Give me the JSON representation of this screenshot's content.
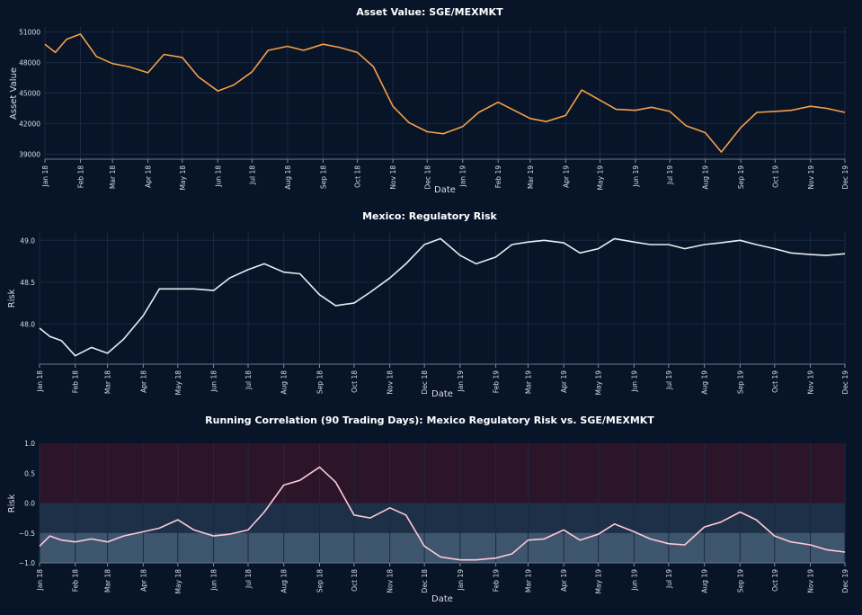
{
  "chart_data": [
    {
      "type": "line",
      "title": "Asset Value: SGE/MEXMKT",
      "xlabel": "Date",
      "ylabel": "Asset Value",
      "ylim": [
        38500,
        51500
      ],
      "yticks": [
        39000,
        42000,
        45000,
        48000,
        51000
      ],
      "xlim": [
        "2018-01-01",
        "2019-12-01"
      ],
      "x_tick_labels": [
        "Jan 18",
        "Feb 18",
        "Mar 18",
        "Apr 18",
        "May 18",
        "Jun 18",
        "Jul 18",
        "Aug 18",
        "Sep 18",
        "Oct 18",
        "Nov 18",
        "Dec 18",
        "Jan 19",
        "Feb 19",
        "Mar 19",
        "Apr 19",
        "May 19",
        "Jun 19",
        "Jul 19",
        "Aug 19",
        "Sep 19",
        "Oct 19",
        "Nov 19",
        "Dec 19"
      ],
      "grid": true,
      "series": [
        {
          "color": "#f5a04a",
          "x": [
            "2018-01-01",
            "2018-01-10",
            "2018-01-20",
            "2018-02-01",
            "2018-02-15",
            "2018-03-01",
            "2018-03-15",
            "2018-04-01",
            "2018-04-15",
            "2018-05-01",
            "2018-05-15",
            "2018-06-01",
            "2018-06-15",
            "2018-07-01",
            "2018-07-15",
            "2018-08-01",
            "2018-08-15",
            "2018-09-01",
            "2018-09-15",
            "2018-10-01",
            "2018-10-15",
            "2018-11-01",
            "2018-11-15",
            "2018-12-01",
            "2018-12-15",
            "2019-01-01",
            "2019-01-15",
            "2019-02-01",
            "2019-02-15",
            "2019-03-01",
            "2019-03-15",
            "2019-04-01",
            "2019-04-15",
            "2019-05-01",
            "2019-05-15",
            "2019-06-01",
            "2019-06-15",
            "2019-07-01",
            "2019-07-15",
            "2019-08-01",
            "2019-08-15",
            "2019-09-01",
            "2019-09-15",
            "2019-10-01",
            "2019-10-15",
            "2019-11-01",
            "2019-11-15",
            "2019-12-01"
          ],
          "y": [
            49800,
            49000,
            50300,
            50800,
            48600,
            47900,
            47600,
            47000,
            48800,
            48500,
            46600,
            45200,
            45800,
            47100,
            49200,
            49600,
            49200,
            49800,
            49500,
            49000,
            47600,
            43700,
            42100,
            41200,
            41000,
            41700,
            43100,
            44100,
            43300,
            42500,
            42200,
            42800,
            45300,
            44300,
            43400,
            43300,
            43600,
            43200,
            41800,
            41100,
            39200,
            41600,
            43100,
            43200,
            43300,
            43700,
            43500,
            43100
          ]
        }
      ]
    },
    {
      "type": "line",
      "title": "Mexico: Regulatory Risk",
      "xlabel": "Date",
      "ylabel": "Risk",
      "ylim": [
        47.52,
        49.1
      ],
      "yticks": [
        48.0,
        48.5,
        49.0
      ],
      "ytick_labels": [
        "48.0",
        "48.5",
        "49.0"
      ],
      "xlim": [
        "2018-01-01",
        "2019-12-01"
      ],
      "x_tick_labels": [
        "Jan 18",
        "Feb 18",
        "Mar 18",
        "Apr 18",
        "May 18",
        "Jun 18",
        "Jul 18",
        "Aug 18",
        "Sep 18",
        "Oct 18",
        "Nov 18",
        "Dec 18",
        "Jan 19",
        "Feb 19",
        "Mar 19",
        "Apr 19",
        "May 19",
        "Jun 19",
        "Jul 19",
        "Aug 19",
        "Sep 19",
        "Oct 19",
        "Nov 19",
        "Dec 19"
      ],
      "grid": true,
      "series": [
        {
          "color": "#e8ecf5",
          "x": [
            "2018-01-01",
            "2018-01-10",
            "2018-01-20",
            "2018-02-01",
            "2018-02-15",
            "2018-03-01",
            "2018-03-15",
            "2018-04-01",
            "2018-04-15",
            "2018-05-01",
            "2018-05-15",
            "2018-06-01",
            "2018-06-15",
            "2018-07-01",
            "2018-07-15",
            "2018-08-01",
            "2018-08-15",
            "2018-09-01",
            "2018-09-15",
            "2018-10-01",
            "2018-10-15",
            "2018-11-01",
            "2018-11-15",
            "2018-12-01",
            "2018-12-15",
            "2019-01-01",
            "2019-01-15",
            "2019-02-01",
            "2019-02-15",
            "2019-03-01",
            "2019-03-15",
            "2019-04-01",
            "2019-04-15",
            "2019-05-01",
            "2019-05-15",
            "2019-06-01",
            "2019-06-15",
            "2019-07-01",
            "2019-07-15",
            "2019-08-01",
            "2019-08-15",
            "2019-09-01",
            "2019-09-15",
            "2019-10-01",
            "2019-10-15",
            "2019-11-01",
            "2019-11-15",
            "2019-12-01"
          ],
          "y": [
            47.95,
            47.85,
            47.8,
            47.62,
            47.72,
            47.65,
            47.82,
            48.1,
            48.42,
            48.42,
            48.42,
            48.4,
            48.55,
            48.65,
            48.72,
            48.62,
            48.6,
            48.35,
            48.22,
            48.25,
            48.38,
            48.55,
            48.72,
            48.95,
            49.02,
            48.82,
            48.72,
            48.8,
            48.95,
            48.98,
            49.0,
            48.97,
            48.85,
            48.9,
            49.02,
            48.98,
            48.95,
            48.95,
            48.9,
            48.95,
            48.97,
            49.0,
            48.95,
            48.9,
            48.85,
            48.83,
            48.82,
            48.84
          ]
        }
      ]
    },
    {
      "type": "line",
      "title": "Running Correlation (90 Trading Days): Mexico Regulatory Risk vs. SGE/MEXMKT",
      "xlabel": "Date",
      "ylabel": "Risk",
      "ylim": [
        -1.0,
        1.0
      ],
      "yticks": [
        -1.0,
        -0.5,
        0.0,
        0.5,
        1.0
      ],
      "ytick_labels": [
        "−1.0",
        "−0.5",
        "0.0",
        "0.5",
        "1.0"
      ],
      "xlim": [
        "2018-01-01",
        "2019-12-01"
      ],
      "x_tick_labels": [
        "Jan 18",
        "Feb 18",
        "Mar 18",
        "Apr 18",
        "May 18",
        "Jun 18",
        "Jul 18",
        "Aug 18",
        "Sep 18",
        "Oct 18",
        "Nov 18",
        "Dec 18",
        "Jan 19",
        "Feb 19",
        "Mar 19",
        "Apr 19",
        "May 19",
        "Jun 19",
        "Jul 19",
        "Aug 19",
        "Sep 19",
        "Oct 19",
        "Nov 19",
        "Dec 19"
      ],
      "grid": true,
      "bands": [
        {
          "from": 0.0,
          "to": 1.0,
          "color": "#2c1529"
        },
        {
          "from": -0.5,
          "to": 0.0,
          "color": "#1d3048"
        },
        {
          "from": -1.0,
          "to": -0.5,
          "color": "#3e566d"
        }
      ],
      "series": [
        {
          "color": "#ffc8d8",
          "x": [
            "2018-01-01",
            "2018-01-10",
            "2018-01-20",
            "2018-02-01",
            "2018-02-15",
            "2018-03-01",
            "2018-03-15",
            "2018-04-01",
            "2018-04-15",
            "2018-05-01",
            "2018-05-15",
            "2018-06-01",
            "2018-06-15",
            "2018-07-01",
            "2018-07-15",
            "2018-08-01",
            "2018-08-15",
            "2018-09-01",
            "2018-09-15",
            "2018-10-01",
            "2018-10-15",
            "2018-11-01",
            "2018-11-15",
            "2018-12-01",
            "2018-12-15",
            "2019-01-01",
            "2019-01-15",
            "2019-02-01",
            "2019-02-15",
            "2019-03-01",
            "2019-03-15",
            "2019-04-01",
            "2019-04-15",
            "2019-05-01",
            "2019-05-15",
            "2019-06-01",
            "2019-06-15",
            "2019-07-01",
            "2019-07-15",
            "2019-08-01",
            "2019-08-15",
            "2019-09-01",
            "2019-09-15",
            "2019-10-01",
            "2019-10-15",
            "2019-11-01",
            "2019-11-15",
            "2019-12-01"
          ],
          "y": [
            -0.72,
            -0.55,
            -0.62,
            -0.65,
            -0.6,
            -0.65,
            -0.55,
            -0.48,
            -0.42,
            -0.28,
            -0.45,
            -0.55,
            -0.52,
            -0.45,
            -0.15,
            0.3,
            0.38,
            0.6,
            0.35,
            -0.2,
            -0.25,
            -0.08,
            -0.2,
            -0.72,
            -0.9,
            -0.95,
            -0.95,
            -0.92,
            -0.85,
            -0.62,
            -0.6,
            -0.45,
            -0.62,
            -0.52,
            -0.35,
            -0.48,
            -0.6,
            -0.68,
            -0.7,
            -0.4,
            -0.32,
            -0.15,
            -0.28,
            -0.55,
            -0.65,
            -0.7,
            -0.78,
            -0.82
          ]
        }
      ]
    }
  ]
}
